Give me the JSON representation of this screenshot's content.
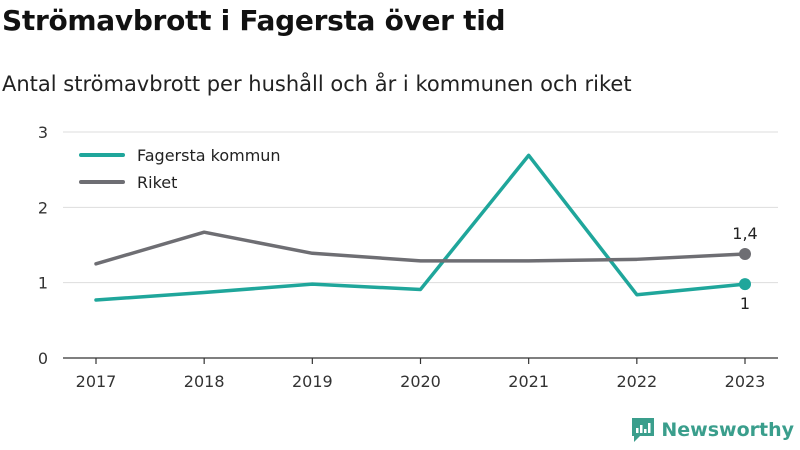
{
  "header": {
    "title": "Strömavbrott i Fagersta över tid",
    "subtitle": "Antal strömavbrott per hushåll och år i kommunen och riket"
  },
  "brand": {
    "name": "Newsworthy",
    "icon": "newsworthy-logo-icon",
    "color": "#3a9e8c"
  },
  "chart_data": {
    "type": "line",
    "title": "Strömavbrott i Fagersta över tid",
    "subtitle": "Antal strömavbrott per hushåll och år i kommunen och riket",
    "xlabel": "",
    "ylabel": "",
    "categories": [
      "2017",
      "2018",
      "2019",
      "2020",
      "2021",
      "2022",
      "2023"
    ],
    "ylim": [
      0,
      3
    ],
    "yticks": [
      "0",
      "1",
      "2",
      "3"
    ],
    "grid": true,
    "legend_position": "top-left",
    "series": [
      {
        "name": "Fagersta kommun",
        "color": "#1fa69b",
        "values": [
          0.77,
          0.87,
          0.98,
          0.91,
          2.69,
          0.84,
          0.98
        ],
        "end_label": "1"
      },
      {
        "name": "Riket",
        "color": "#6e6e73",
        "values": [
          1.25,
          1.67,
          1.39,
          1.29,
          1.29,
          1.31,
          1.38
        ],
        "end_label": "1,4"
      }
    ]
  }
}
